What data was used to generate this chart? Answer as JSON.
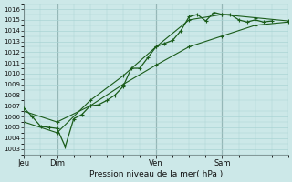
{
  "title": "Pression niveau de la mer( hPa )",
  "bg_color": "#cce8e8",
  "grid_color": "#aad4d4",
  "line_color": "#1a5c1a",
  "ylim": [
    1002.5,
    1016.5
  ],
  "yticks": [
    1003,
    1004,
    1005,
    1006,
    1007,
    1008,
    1009,
    1010,
    1011,
    1012,
    1013,
    1014,
    1015,
    1016
  ],
  "xtick_labels": [
    "Jeu",
    "Dim",
    "Ven",
    "Sam"
  ],
  "xtick_positions": [
    0.0,
    0.125,
    0.5,
    0.75
  ],
  "xmax": 1.0,
  "vline_positions": [
    0.0,
    0.125,
    0.5,
    0.75
  ],
  "series1_x": [
    0.0,
    0.031,
    0.063,
    0.094,
    0.125,
    0.156,
    0.188,
    0.219,
    0.25,
    0.281,
    0.313,
    0.344,
    0.375,
    0.406,
    0.438,
    0.469,
    0.5,
    0.531,
    0.563,
    0.594,
    0.625,
    0.656,
    0.688,
    0.719,
    0.75,
    0.781,
    0.813,
    0.844,
    0.875,
    0.906,
    0.938
  ],
  "series1_y": [
    1006.8,
    1006.0,
    1005.1,
    1005.0,
    1004.9,
    1003.2,
    1005.8,
    1006.2,
    1007.0,
    1007.1,
    1007.5,
    1008.0,
    1008.8,
    1010.5,
    1010.5,
    1011.5,
    1012.5,
    1012.8,
    1013.1,
    1014.0,
    1015.3,
    1015.5,
    1014.9,
    1015.7,
    1015.5,
    1015.5,
    1015.0,
    1014.8,
    1015.0,
    1014.8,
    1014.9
  ],
  "series2_x": [
    0.0,
    0.125,
    0.25,
    0.375,
    0.5,
    0.625,
    0.75,
    0.875,
    1.0
  ],
  "series2_y": [
    1006.5,
    1005.5,
    1007.0,
    1009.0,
    1010.8,
    1012.5,
    1013.5,
    1014.5,
    1014.8
  ],
  "series3_x": [
    0.0,
    0.125,
    0.25,
    0.375,
    0.5,
    0.625,
    0.75,
    0.875,
    1.0
  ],
  "series3_y": [
    1005.5,
    1004.5,
    1007.5,
    1009.8,
    1012.5,
    1015.0,
    1015.5,
    1015.2,
    1014.9
  ]
}
